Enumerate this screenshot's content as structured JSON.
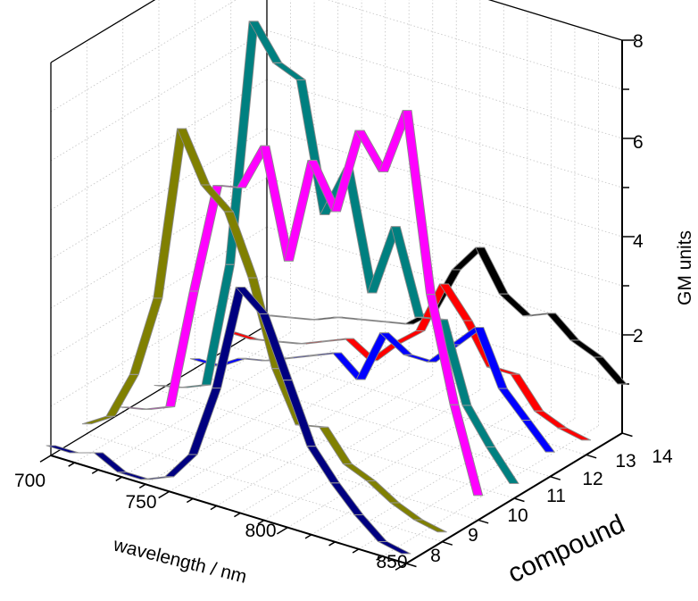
{
  "chart_data": {
    "type": "line",
    "xlabel": "wavelength / nm",
    "ylabel": "compound",
    "zlabel": "GM units",
    "x_ticks": [
      700,
      750,
      800,
      850
    ],
    "y_ticks": [
      8,
      9,
      10,
      11,
      12,
      13,
      14
    ],
    "z_ticks": [
      2,
      4,
      6,
      8
    ],
    "xlim": [
      700,
      850
    ],
    "ylim": [
      8,
      14
    ],
    "zlim": [
      0,
      8
    ],
    "grid": true,
    "x": [
      700,
      710,
      720,
      730,
      740,
      750,
      760,
      770,
      780,
      790,
      800,
      810,
      820,
      830,
      840,
      850
    ],
    "series": [
      {
        "compound": 8,
        "color": "#000080",
        "values": [
          0.2,
          0.2,
          0.35,
          0.1,
          0.1,
          0.3,
          0.9,
          2.4,
          4.6,
          4.2,
          3.0,
          1.8,
          1.2,
          0.7,
          0.3,
          0.2
        ]
      },
      {
        "compound": 9,
        "color": "#808000",
        "values": [
          0.2,
          0.5,
          1.5,
          3.2,
          6.8,
          5.8,
          5.4,
          4.2,
          2.5,
          1.5,
          1.6,
          1.0,
          0.8,
          0.5,
          0.3,
          0.2
        ]
      },
      {
        "compound": 10,
        "color": "#ff00ff",
        "values": [
          0.1,
          0.2,
          0.4,
          2.9,
          5.2,
          5.3,
          6.3,
          4.1,
          6.3,
          5.4,
          7.2,
          6.5,
          7.9,
          4.3,
          2.2,
          0.5
        ]
      },
      {
        "compound": 11,
        "color": "#008080",
        "values": [
          0.1,
          0.2,
          0.4,
          3.0,
          8.1,
          7.4,
          7.2,
          4.6,
          5.7,
          3.3,
          4.8,
          3.1,
          3.2,
          1.6,
          0.9,
          0.3
        ]
      },
      {
        "compound": 12,
        "color": "#0000ff",
        "values": [
          0.2,
          0.2,
          0.5,
          0.6,
          0.8,
          1.0,
          1.2,
          0.8,
          1.9,
          1.6,
          1.6,
          2.1,
          2.6,
          1.5,
          1.0,
          0.5
        ]
      },
      {
        "compound": 13,
        "color": "#ff0000",
        "values": [
          0.3,
          0.3,
          0.4,
          0.5,
          0.7,
          0.9,
          0.6,
          1.1,
          1.5,
          2.6,
          2.0,
          1.2,
          1.2,
          0.6,
          0.4,
          0.3
        ]
      },
      {
        "compound": 14,
        "color": "#000000",
        "values": [
          0.2,
          0.3,
          0.4,
          0.6,
          0.7,
          0.8,
          0.9,
          1.3,
          2.3,
          2.9,
          2.1,
          1.8,
          2.0,
          1.6,
          1.4,
          1.0
        ]
      }
    ]
  }
}
